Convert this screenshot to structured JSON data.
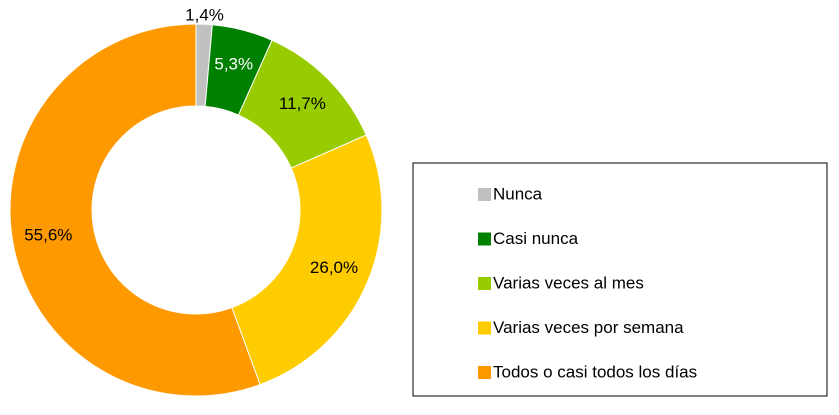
{
  "chart_data": {
    "type": "donut",
    "categories": [
      "Nunca",
      "Casi nunca",
      "Varias veces al mes",
      "Varias veces por semana",
      "Todos o casi todos los días"
    ],
    "values": [
      1.4,
      5.3,
      11.7,
      26.0,
      55.6
    ],
    "value_labels": [
      "1,4%",
      "5,3%",
      "11,7%",
      "26,0%",
      "55,6%"
    ],
    "colors": [
      "#c0c0c0",
      "#008000",
      "#99cc00",
      "#ffcc00",
      "#ff9900"
    ],
    "legend": "right"
  }
}
